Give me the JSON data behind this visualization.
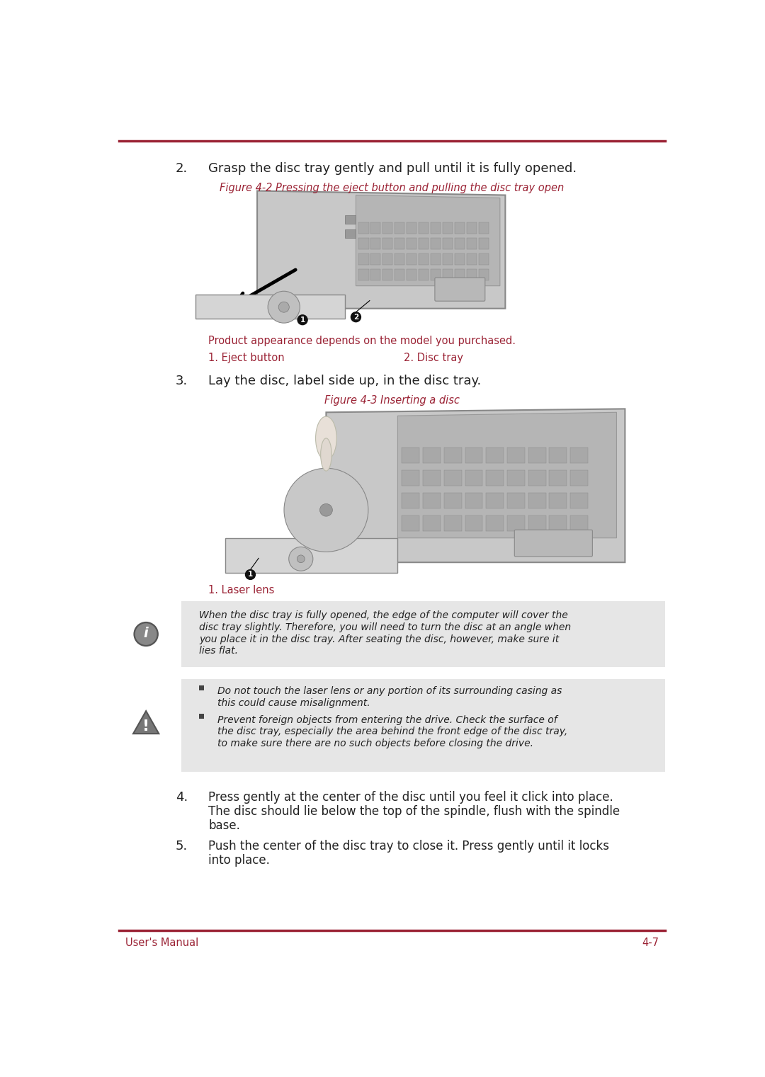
{
  "bg_color": "#ffffff",
  "line_color": "#9b2335",
  "text_dark": "#222222",
  "text_red": "#9b2335",
  "box_bg": "#e6e6e6",
  "footer_left": "User's Manual",
  "footer_right": "4-7",
  "step2_num": "2.",
  "step2_text": "Grasp the disc tray gently and pull until it is fully opened.",
  "fig2_caption": "Figure 4-2 Pressing the eject button and pulling the disc tray open",
  "product_note": "Product appearance depends on the model you purchased.",
  "label1a": "1. Eject button",
  "label2a": "2. Disc tray",
  "step3_num": "3.",
  "step3_text": "Lay the disc, label side up, in the disc tray.",
  "fig3_caption": "Figure 4-3 Inserting a disc",
  "label1b": "1. Laser lens",
  "info_lines": [
    "When the disc tray is fully opened, the edge of the computer will cover the",
    "disc tray slightly. Therefore, you will need to turn the disc at an angle when",
    "you place it in the disc tray. After seating the disc, however, make sure it",
    "lies flat."
  ],
  "warn_lines1": [
    "Do not touch the laser lens or any portion of its surrounding casing as",
    "this could cause misalignment."
  ],
  "warn_lines2": [
    "Prevent foreign objects from entering the drive. Check the surface of",
    "the disc tray, especially the area behind the front edge of the disc tray,",
    "to make sure there are no such objects before closing the drive."
  ],
  "step4_lines": [
    "Press gently at the center of the disc until you feel it click into place.",
    "The disc should lie below the top of the spindle, flush with the spindle",
    "base."
  ],
  "step5_lines": [
    "Push the center of the disc tray to close it. Press gently until it locks",
    "into place."
  ],
  "laptop_body_color": "#cccccc",
  "laptop_edge_color": "#999999",
  "laptop_kbd_color": "#b8b8b8",
  "laptop_key_color": "#aaaaaa",
  "laptop_dark_color": "#888888",
  "tray_color": "#d8d8d8",
  "arrow_color": "#111111"
}
